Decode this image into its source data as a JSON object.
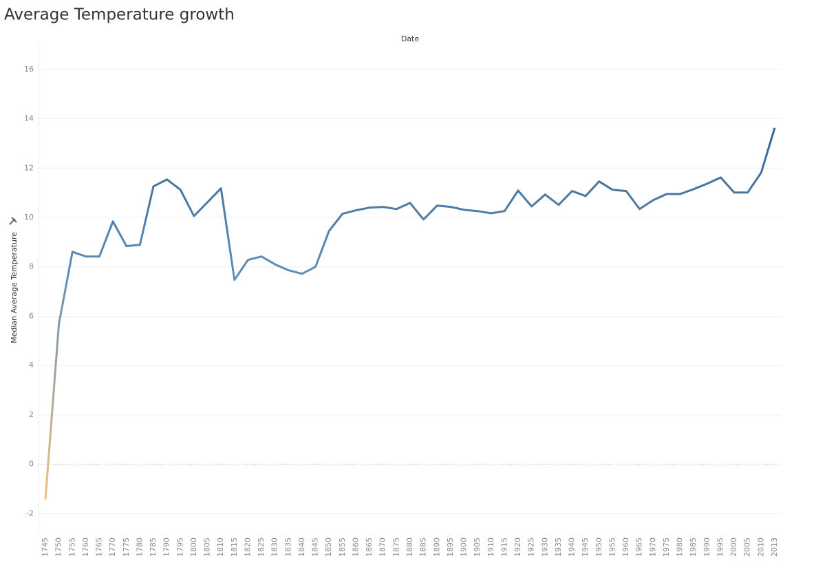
{
  "chart_data": {
    "type": "line",
    "title": "Average Temperature growth",
    "x_label": "Date",
    "y_label": "Median Average Temperature",
    "categories": [
      "1745",
      "1750",
      "1755",
      "1760",
      "1765",
      "1770",
      "1775",
      "1780",
      "1785",
      "1790",
      "1795",
      "1800",
      "1805",
      "1810",
      "1815",
      "1820",
      "1825",
      "1830",
      "1835",
      "1840",
      "1845",
      "1850",
      "1855",
      "1860",
      "1865",
      "1870",
      "1875",
      "1880",
      "1885",
      "1890",
      "1895",
      "1900",
      "1905",
      "1910",
      "1915",
      "1920",
      "1925",
      "1930",
      "1935",
      "1940",
      "1945",
      "1950",
      "1955",
      "1960",
      "1965",
      "1970",
      "1975",
      "1980",
      "1985",
      "1990",
      "1995",
      "2000",
      "2005",
      "2010",
      "2013"
    ],
    "values": [
      -1.42,
      5.69,
      8.61,
      8.42,
      8.42,
      9.84,
      8.84,
      8.89,
      11.26,
      11.54,
      11.12,
      10.06,
      10.62,
      11.18,
      7.47,
      8.28,
      8.42,
      8.1,
      7.86,
      7.72,
      8.0,
      9.45,
      10.15,
      10.29,
      10.4,
      10.43,
      10.34,
      10.59,
      9.92,
      10.48,
      10.43,
      10.31,
      10.26,
      10.17,
      10.26,
      11.09,
      10.45,
      10.93,
      10.51,
      11.07,
      10.87,
      11.46,
      11.12,
      11.07,
      10.34,
      10.7,
      10.95,
      10.95,
      11.15,
      11.37,
      11.62,
      11.01,
      11.01,
      11.82,
      13.63
    ],
    "colors": [
      "#f2c27c",
      "#5f8fba",
      "#3a6490"
    ],
    "ylim": [
      -2.8,
      17
    ],
    "yticks": [
      -2,
      0,
      2,
      4,
      6,
      8,
      10,
      12,
      14,
      16
    ],
    "grid": true
  }
}
